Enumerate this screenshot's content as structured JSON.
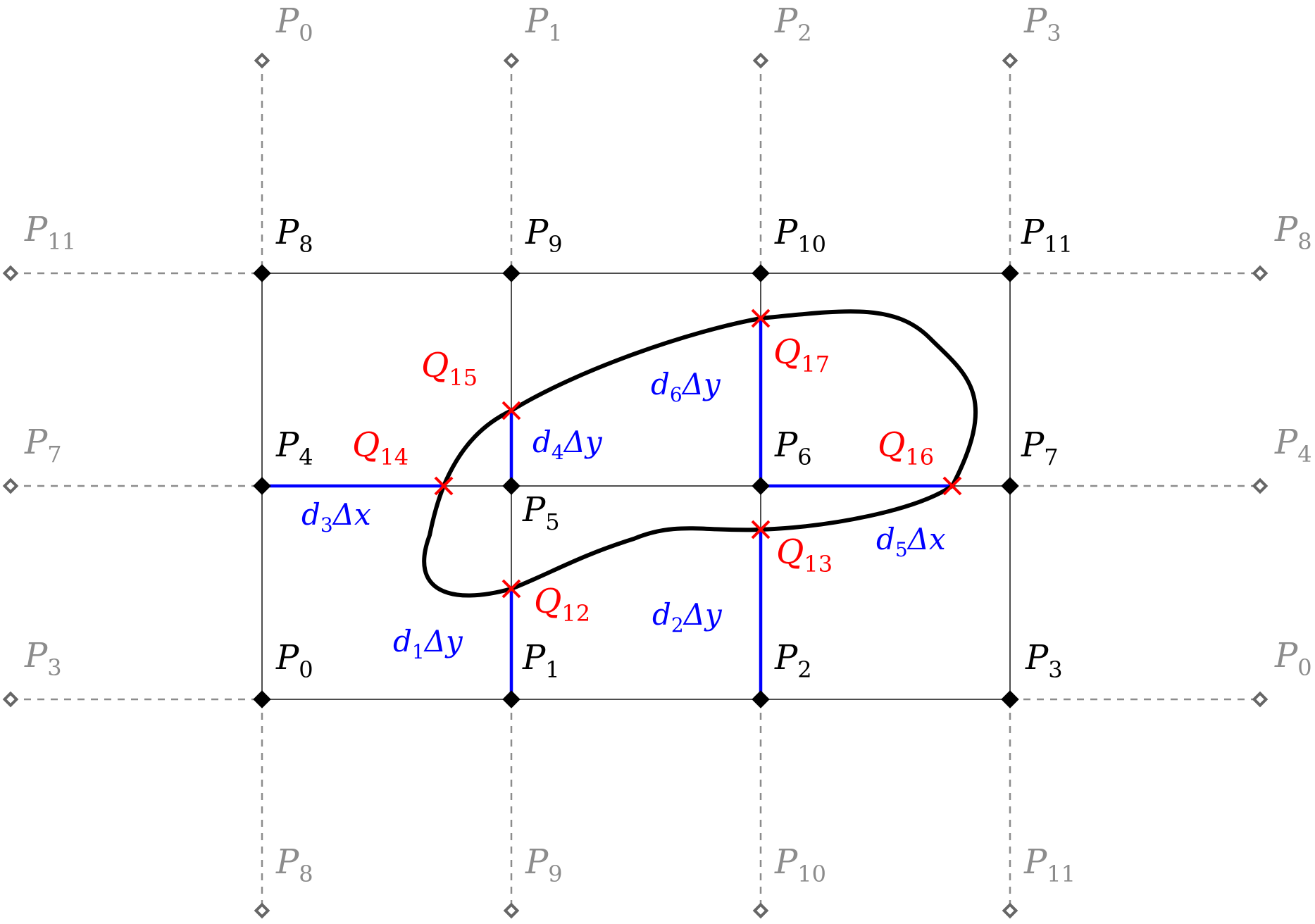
{
  "diagram": {
    "colors": {
      "grid": "#4d4d4d",
      "ghost": "#8c8c8c",
      "intersection": "#ff0000",
      "distance": "#0000ff",
      "curve": "#000000"
    },
    "ghost_labels": {
      "top": [
        {
          "base": "P",
          "sub": "0"
        },
        {
          "base": "P",
          "sub": "1"
        },
        {
          "base": "P",
          "sub": "2"
        },
        {
          "base": "P",
          "sub": "3"
        }
      ],
      "bottom": [
        {
          "base": "P",
          "sub": "8"
        },
        {
          "base": "P",
          "sub": "9"
        },
        {
          "base": "P",
          "sub": "10"
        },
        {
          "base": "P",
          "sub": "11"
        }
      ],
      "left": [
        {
          "base": "P",
          "sub": "11"
        },
        {
          "base": "P",
          "sub": "7"
        },
        {
          "base": "P",
          "sub": "3"
        }
      ],
      "right": [
        {
          "base": "P",
          "sub": "8"
        },
        {
          "base": "P",
          "sub": "4"
        },
        {
          "base": "P",
          "sub": "0"
        }
      ]
    },
    "grid_points": [
      {
        "base": "P",
        "sub": "8"
      },
      {
        "base": "P",
        "sub": "9"
      },
      {
        "base": "P",
        "sub": "10"
      },
      {
        "base": "P",
        "sub": "11"
      },
      {
        "base": "P",
        "sub": "4"
      },
      {
        "base": "P",
        "sub": "5"
      },
      {
        "base": "P",
        "sub": "6"
      },
      {
        "base": "P",
        "sub": "7"
      },
      {
        "base": "P",
        "sub": "0"
      },
      {
        "base": "P",
        "sub": "1"
      },
      {
        "base": "P",
        "sub": "2"
      },
      {
        "base": "P",
        "sub": "3"
      }
    ],
    "intersections": [
      {
        "base": "Q",
        "sub": "12"
      },
      {
        "base": "Q",
        "sub": "13"
      },
      {
        "base": "Q",
        "sub": "14"
      },
      {
        "base": "Q",
        "sub": "15"
      },
      {
        "base": "Q",
        "sub": "16"
      },
      {
        "base": "Q",
        "sub": "17"
      }
    ],
    "distances": [
      {
        "d": "d",
        "sub": "1",
        "tail": "Δy"
      },
      {
        "d": "d",
        "sub": "2",
        "tail": "Δy"
      },
      {
        "d": "d",
        "sub": "3",
        "tail": "Δx"
      },
      {
        "d": "d",
        "sub": "4",
        "tail": "Δy"
      },
      {
        "d": "d",
        "sub": "5",
        "tail": "Δx"
      },
      {
        "d": "d",
        "sub": "6",
        "tail": "Δy"
      }
    ]
  }
}
